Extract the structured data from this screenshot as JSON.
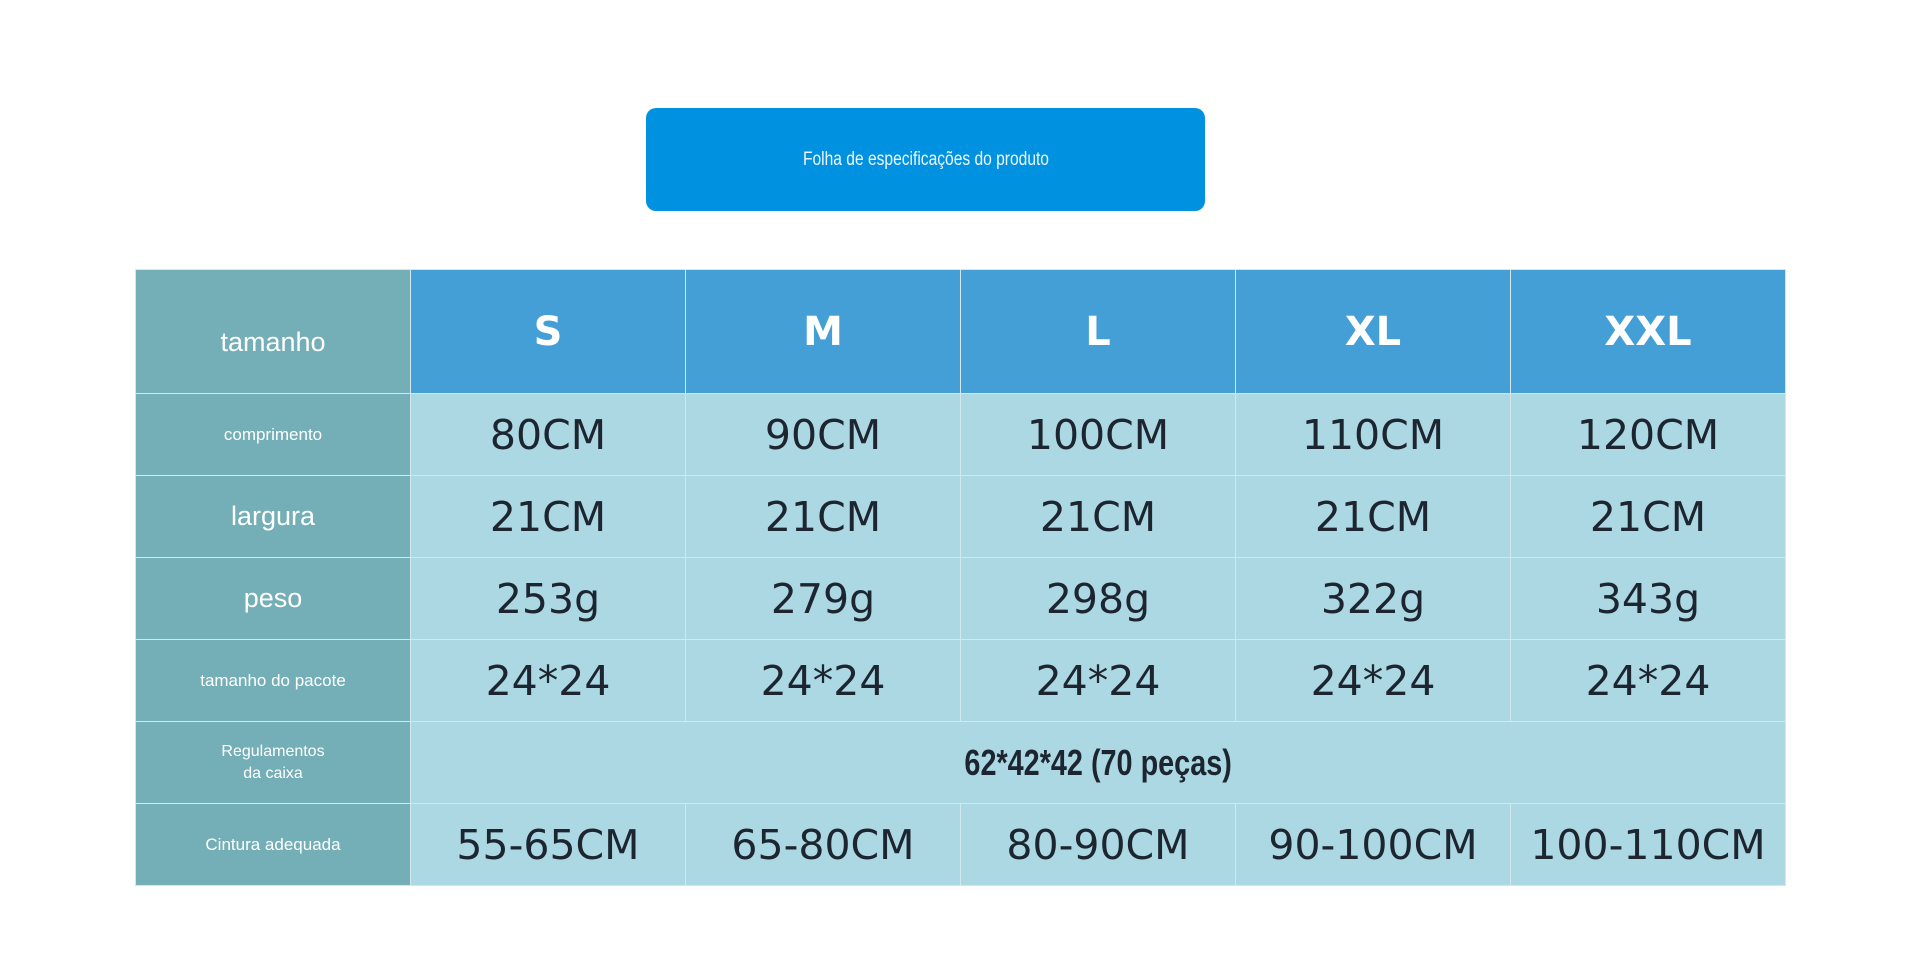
{
  "header": {
    "title": "Folha de especificações do produto"
  },
  "table": {
    "header": [
      "tamanho",
      "S",
      "M",
      "L",
      "XL",
      "XXL"
    ],
    "rows": [
      {
        "label": "comprimento",
        "cells": [
          "80CM",
          "90CM",
          "100CM",
          "110CM",
          "120CM"
        ]
      },
      {
        "label": "largura",
        "cells": [
          "21CM",
          "21CM",
          "21CM",
          "21CM",
          "21CM"
        ]
      },
      {
        "label": "peso",
        "cells": [
          "253g",
          "279g",
          "298g",
          "322g",
          "343g"
        ]
      },
      {
        "label": "tamanho do pacote",
        "cells": [
          "24*24",
          "24*24",
          "24*24",
          "24*24",
          "24*24"
        ]
      },
      {
        "label": [
          "Regulamentos",
          "da caixa"
        ],
        "cells": [
          "62*42*42 (70 peças)"
        ]
      },
      {
        "label": "Cintura adequada",
        "cells": [
          "55-65CM",
          "65-80CM",
          "80-90CM",
          "90-100CM",
          "100-110CM"
        ]
      }
    ]
  }
}
